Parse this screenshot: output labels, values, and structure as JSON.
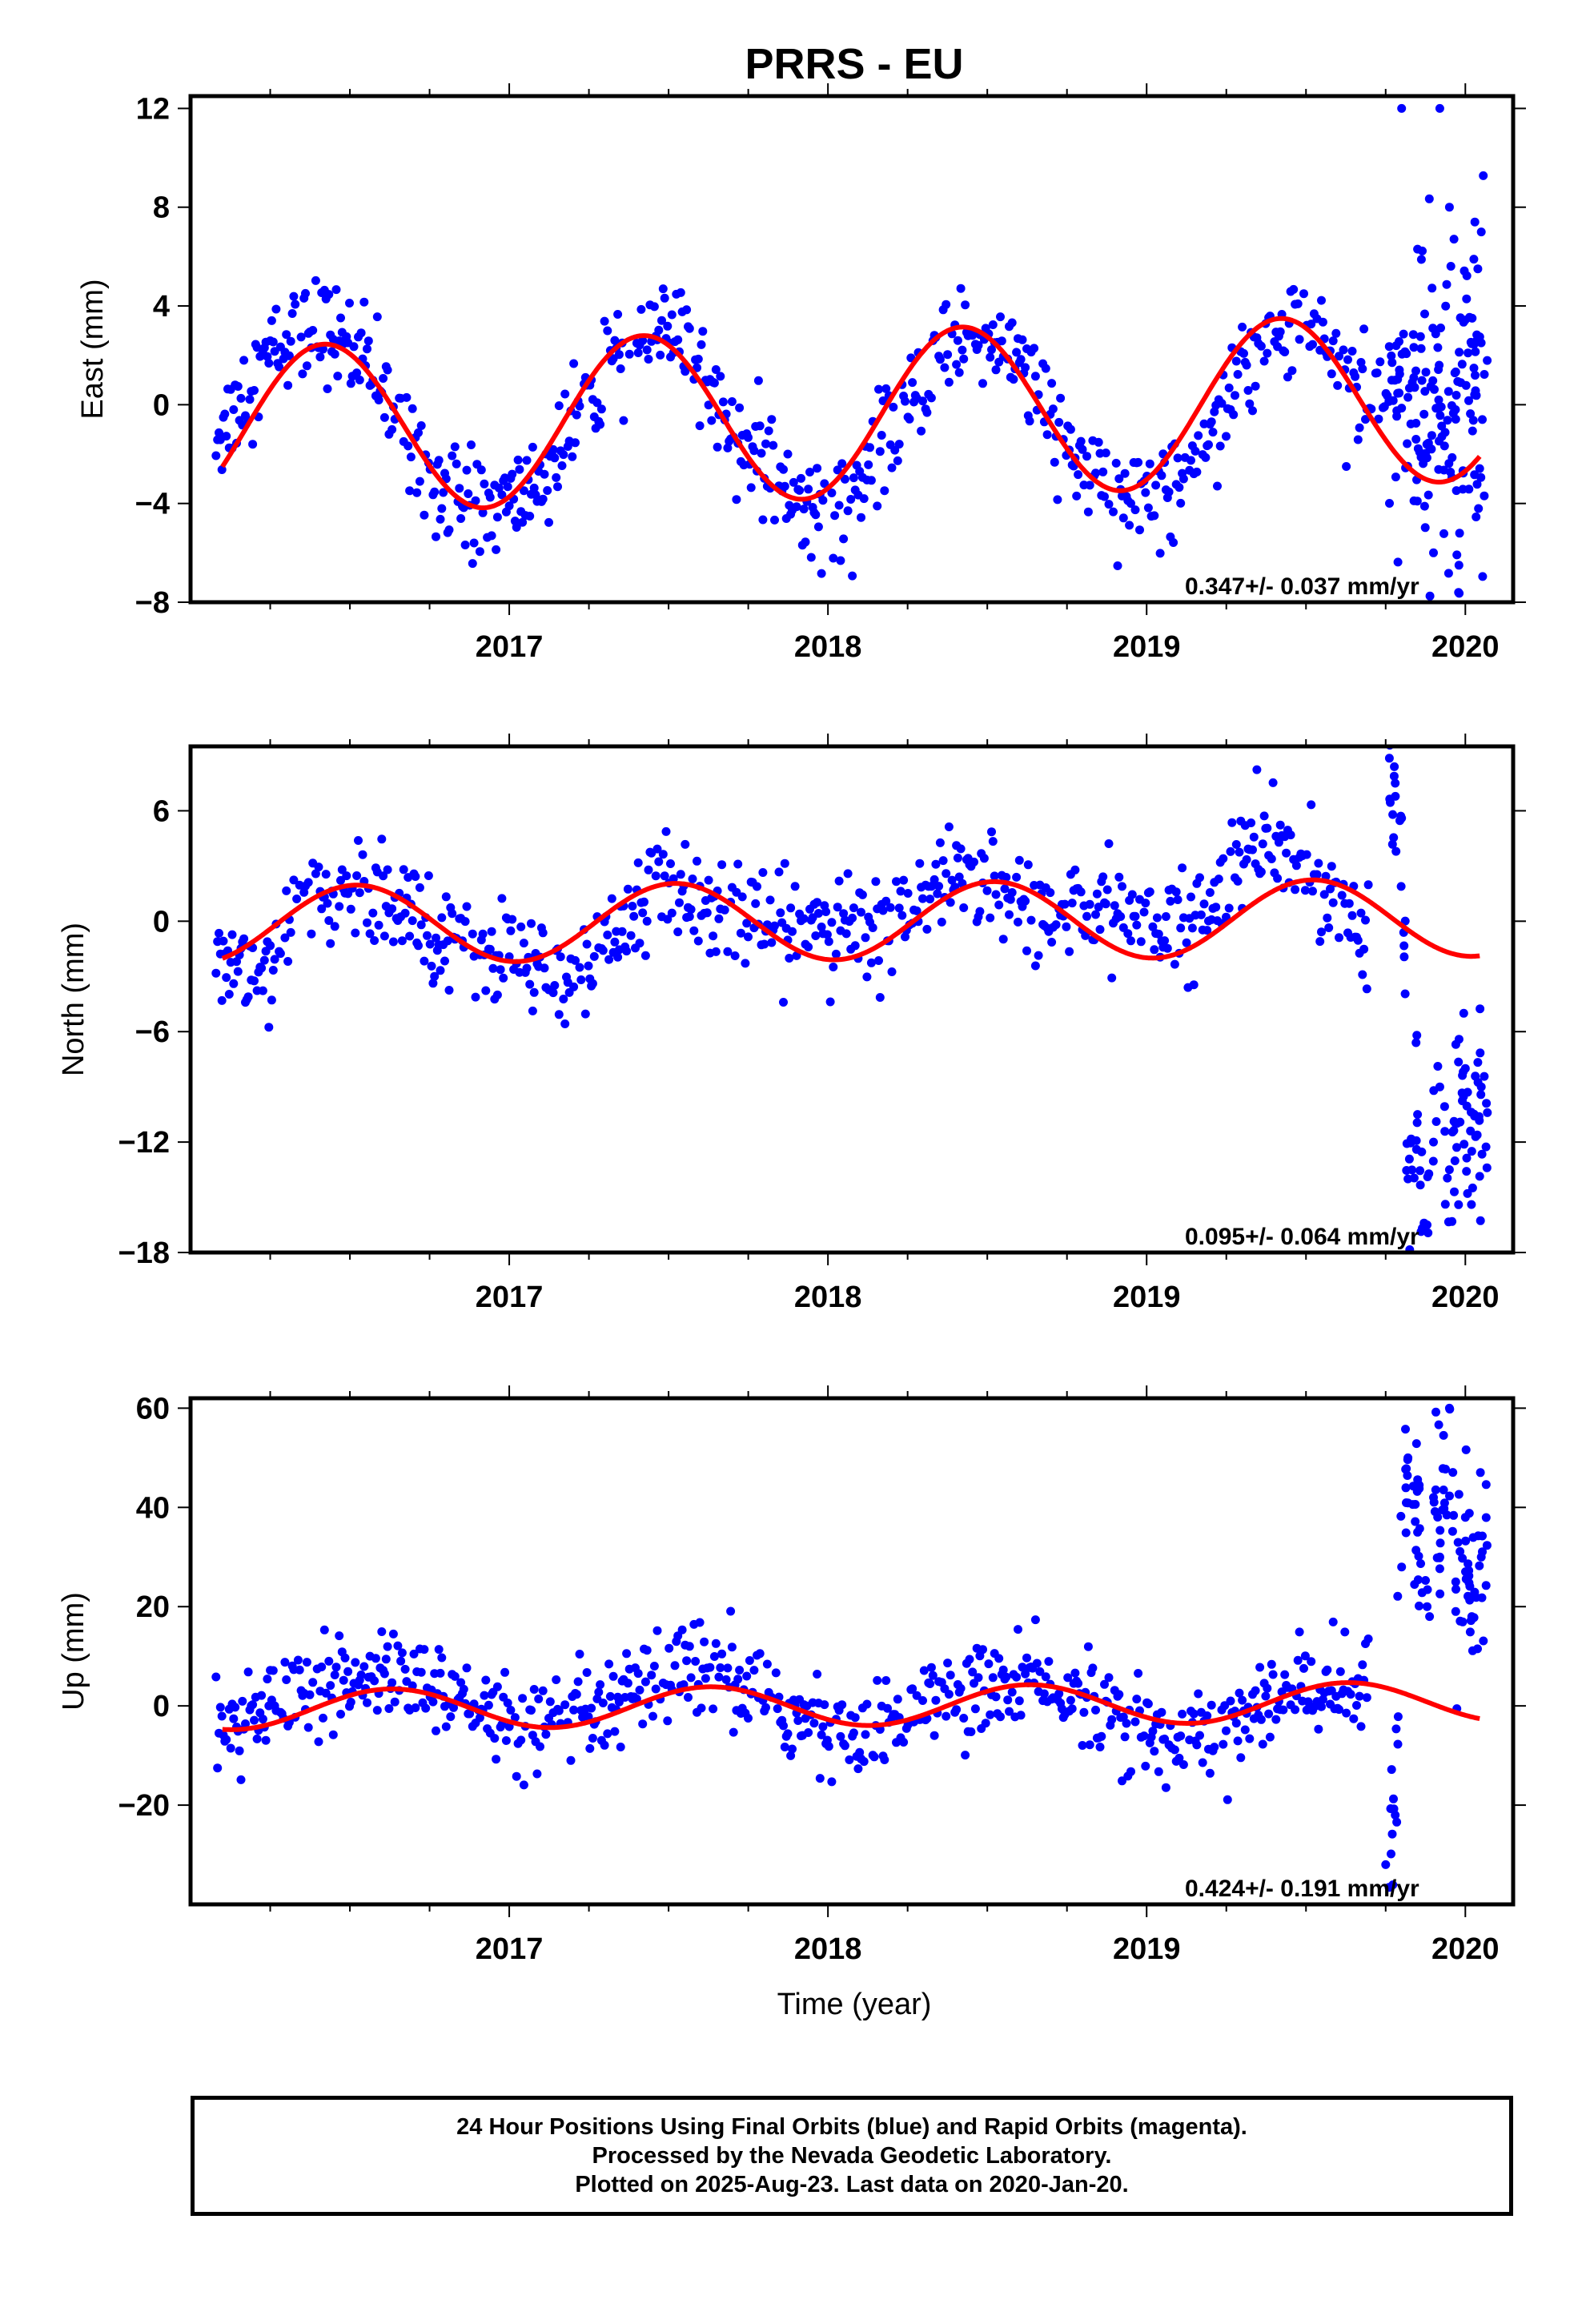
{
  "title": "PRRS - EU",
  "footer": {
    "line1": "24 Hour Positions Using Final Orbits (blue) and Rapid Orbits (magenta).",
    "line2": "Processed by the Nevada Geodetic Laboratory.",
    "line3": "Plotted on 2025-Aug-23. Last data on 2020-Jan-20."
  },
  "colors": {
    "points": "#0000ff",
    "fit": "#ff0000",
    "frame": "#000000"
  },
  "chart_data": [
    {
      "type": "scatter",
      "ylabel": "East (mm)",
      "xlabel": "",
      "xlim": [
        2016.0,
        2020.15
      ],
      "ylim": [
        -8,
        12.5
      ],
      "xticks": [
        2017,
        2018,
        2019,
        2020
      ],
      "yticks": [
        -8,
        -4,
        0,
        4,
        8,
        12
      ],
      "rate_label": "0.347+/- 0.037 mm/yr",
      "fit": {
        "mean": -0.4,
        "trend": 0.347,
        "t0": 2018.0,
        "amp": 3.4,
        "peak": 2016.42
      },
      "x": [
        2016.1,
        2016.2,
        2016.3,
        2016.4,
        2016.5,
        2016.6,
        2016.7,
        2016.8,
        2016.9,
        2017.0,
        2017.1,
        2017.2,
        2017.3,
        2017.4,
        2017.5,
        2017.6,
        2017.7,
        2017.8,
        2017.9,
        2018.0,
        2018.1,
        2018.2,
        2018.3,
        2018.4,
        2018.5,
        2018.6,
        2018.7,
        2018.8,
        2018.9,
        2019.0,
        2019.1,
        2019.2,
        2019.3,
        2019.4,
        2019.5,
        2019.6,
        2019.7,
        2019.75,
        2019.8,
        2019.85,
        2019.9,
        2019.95,
        2020.0,
        2020.05
      ],
      "y": [
        -1.0,
        1.2,
        2.8,
        3.2,
        2.4,
        0.6,
        -1.6,
        -3.4,
        -4.2,
        -4.1,
        -3.0,
        -1.1,
        1.1,
        2.6,
        2.9,
        1.6,
        -0.6,
        -2.7,
        -3.9,
        -4.2,
        -3.3,
        -1.3,
        1.0,
        2.7,
        3.0,
        1.8,
        -0.5,
        -2.6,
        -3.8,
        -3.9,
        -2.8,
        -0.9,
        1.5,
        3.2,
        3.3,
        2.1,
        0.3,
        -0.4,
        2.0,
        -1.5,
        0.8,
        -3.0,
        3.5,
        1.0
      ],
      "outliers_x": [
        2019.8,
        2019.85,
        2019.9,
        2019.92,
        2019.95,
        2019.98,
        2020.03,
        2020.05
      ],
      "outliers_y": [
        12.0,
        6.3,
        -6.0,
        12.0,
        8.0,
        -6.5,
        7.4,
        7.0
      ]
    },
    {
      "type": "scatter",
      "ylabel": "North (mm)",
      "xlabel": "",
      "xlim": [
        2016.0,
        2020.15
      ],
      "ylim": [
        -18,
        9.5
      ],
      "xticks": [
        2017,
        2018,
        2019,
        2020
      ],
      "yticks": [
        -18,
        -12,
        -6,
        0,
        6
      ],
      "rate_label": "0.095+/- 0.064 mm/yr",
      "fit": {
        "mean": 0.0,
        "trend": 0.095,
        "t0": 2018.0,
        "amp": 2.1,
        "peak": 2016.52
      },
      "x": [
        2016.1,
        2016.2,
        2016.3,
        2016.4,
        2016.5,
        2016.6,
        2016.7,
        2016.8,
        2016.9,
        2017.0,
        2017.1,
        2017.2,
        2017.3,
        2017.4,
        2017.5,
        2017.6,
        2017.7,
        2017.8,
        2017.9,
        2018.0,
        2018.1,
        2018.2,
        2018.3,
        2018.4,
        2018.5,
        2018.6,
        2018.7,
        2018.8,
        2018.9,
        2019.0,
        2019.1,
        2019.2,
        2019.3,
        2019.4,
        2019.5,
        2019.6,
        2019.7
      ],
      "y": [
        -2.4,
        -2.8,
        -1.0,
        0.8,
        2.0,
        1.4,
        0.2,
        -0.6,
        -1.4,
        -1.8,
        -2.6,
        -3.4,
        -1.5,
        0.9,
        2.0,
        1.5,
        0.4,
        -0.4,
        -0.2,
        0.0,
        -0.8,
        -0.4,
        1.1,
        1.9,
        2.6,
        1.0,
        0.2,
        0.5,
        1.0,
        0.3,
        -1.1,
        0.8,
        3.5,
        3.8,
        3.1,
        1.0,
        -0.4
      ],
      "offset_x": [
        2019.78,
        2019.8,
        2019.82,
        2019.85,
        2019.88,
        2019.9,
        2019.92,
        2019.95,
        2019.97,
        2020.0,
        2020.02,
        2020.05
      ],
      "offset_y": [
        7.5,
        5.6,
        -14.0,
        -10.5,
        -16.5,
        -12.0,
        -9.0,
        -13.5,
        -11.0,
        -8.0,
        -12.5,
        -9.0
      ]
    },
    {
      "type": "scatter",
      "ylabel": "Up (mm)",
      "xlabel": "Time (year)",
      "xlim": [
        2016.0,
        2020.15
      ],
      "ylim": [
        -40,
        62
      ],
      "xticks": [
        2017,
        2018,
        2019,
        2020
      ],
      "yticks": [
        -20,
        0,
        20,
        40,
        60
      ],
      "rate_label": "0.424+/- 0.191 mm/yr",
      "fit": {
        "mean": 0.0,
        "trend": 0.424,
        "t0": 2018.0,
        "amp": 4.0,
        "peak": 2016.63
      },
      "x": [
        2016.1,
        2016.2,
        2016.3,
        2016.4,
        2016.5,
        2016.6,
        2016.7,
        2016.8,
        2016.9,
        2017.0,
        2017.1,
        2017.2,
        2017.3,
        2017.4,
        2017.5,
        2017.6,
        2017.7,
        2017.8,
        2017.9,
        2018.0,
        2018.1,
        2018.2,
        2018.3,
        2018.4,
        2018.5,
        2018.6,
        2018.7,
        2018.8,
        2018.9,
        2019.0,
        2019.1,
        2019.2,
        2019.3,
        2019.4,
        2019.5,
        2019.6,
        2019.7
      ],
      "y": [
        -6.0,
        -3.0,
        1.5,
        3.0,
        4.5,
        6.0,
        6.5,
        2.0,
        -1.0,
        -4.0,
        -4.5,
        -3.0,
        -1.5,
        2.0,
        6.0,
        7.5,
        4.5,
        1.5,
        -2.0,
        -4.0,
        -4.5,
        -3.0,
        -1.0,
        1.5,
        4.0,
        5.5,
        4.0,
        1.0,
        -2.5,
        -6.5,
        -7.0,
        -5.0,
        -2.0,
        1.5,
        3.5,
        4.5,
        2.0
      ],
      "offset_x": [
        2019.75,
        2019.78,
        2019.8,
        2019.82,
        2019.85,
        2019.88,
        2019.9,
        2019.92,
        2019.95,
        2019.97,
        2020.0,
        2020.02,
        2020.05
      ],
      "offset_y": [
        -32.0,
        -22.0,
        28.0,
        50.0,
        35.0,
        20.0,
        42.0,
        30.0,
        60.0,
        25.0,
        38.0,
        18.0,
        30.0
      ]
    }
  ]
}
